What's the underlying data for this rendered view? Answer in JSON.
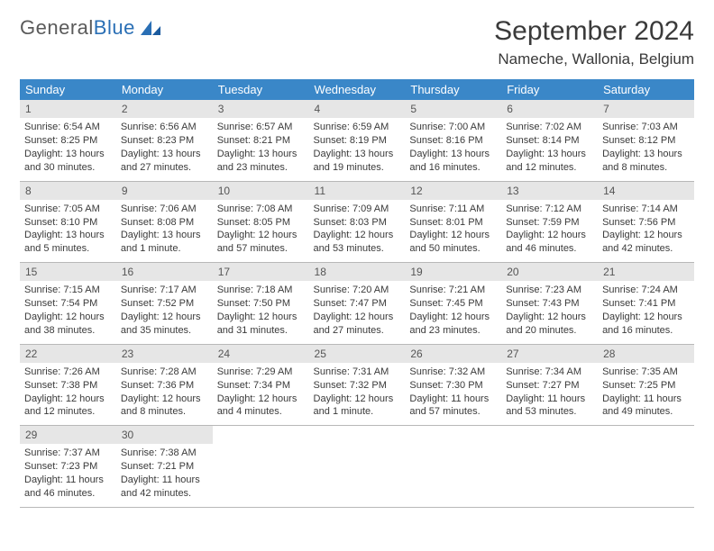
{
  "logo": {
    "text1": "General",
    "text2": "Blue"
  },
  "title": "September 2024",
  "location": "Nameche, Wallonia, Belgium",
  "colors": {
    "header_bg": "#3a87c8",
    "header_text": "#ffffff",
    "daynum_bg": "#e6e6e6",
    "border": "#b8b8b8",
    "logo_gray": "#5a5a5a",
    "logo_blue": "#2a6fb5",
    "body_text": "#3a3a3a",
    "page_bg": "#ffffff"
  },
  "weekdays": [
    "Sunday",
    "Monday",
    "Tuesday",
    "Wednesday",
    "Thursday",
    "Friday",
    "Saturday"
  ],
  "days": [
    {
      "n": "1",
      "sunrise": "Sunrise: 6:54 AM",
      "sunset": "Sunset: 8:25 PM",
      "day1": "Daylight: 13 hours",
      "day2": "and 30 minutes."
    },
    {
      "n": "2",
      "sunrise": "Sunrise: 6:56 AM",
      "sunset": "Sunset: 8:23 PM",
      "day1": "Daylight: 13 hours",
      "day2": "and 27 minutes."
    },
    {
      "n": "3",
      "sunrise": "Sunrise: 6:57 AM",
      "sunset": "Sunset: 8:21 PM",
      "day1": "Daylight: 13 hours",
      "day2": "and 23 minutes."
    },
    {
      "n": "4",
      "sunrise": "Sunrise: 6:59 AM",
      "sunset": "Sunset: 8:19 PM",
      "day1": "Daylight: 13 hours",
      "day2": "and 19 minutes."
    },
    {
      "n": "5",
      "sunrise": "Sunrise: 7:00 AM",
      "sunset": "Sunset: 8:16 PM",
      "day1": "Daylight: 13 hours",
      "day2": "and 16 minutes."
    },
    {
      "n": "6",
      "sunrise": "Sunrise: 7:02 AM",
      "sunset": "Sunset: 8:14 PM",
      "day1": "Daylight: 13 hours",
      "day2": "and 12 minutes."
    },
    {
      "n": "7",
      "sunrise": "Sunrise: 7:03 AM",
      "sunset": "Sunset: 8:12 PM",
      "day1": "Daylight: 13 hours",
      "day2": "and 8 minutes."
    },
    {
      "n": "8",
      "sunrise": "Sunrise: 7:05 AM",
      "sunset": "Sunset: 8:10 PM",
      "day1": "Daylight: 13 hours",
      "day2": "and 5 minutes."
    },
    {
      "n": "9",
      "sunrise": "Sunrise: 7:06 AM",
      "sunset": "Sunset: 8:08 PM",
      "day1": "Daylight: 13 hours",
      "day2": "and 1 minute."
    },
    {
      "n": "10",
      "sunrise": "Sunrise: 7:08 AM",
      "sunset": "Sunset: 8:05 PM",
      "day1": "Daylight: 12 hours",
      "day2": "and 57 minutes."
    },
    {
      "n": "11",
      "sunrise": "Sunrise: 7:09 AM",
      "sunset": "Sunset: 8:03 PM",
      "day1": "Daylight: 12 hours",
      "day2": "and 53 minutes."
    },
    {
      "n": "12",
      "sunrise": "Sunrise: 7:11 AM",
      "sunset": "Sunset: 8:01 PM",
      "day1": "Daylight: 12 hours",
      "day2": "and 50 minutes."
    },
    {
      "n": "13",
      "sunrise": "Sunrise: 7:12 AM",
      "sunset": "Sunset: 7:59 PM",
      "day1": "Daylight: 12 hours",
      "day2": "and 46 minutes."
    },
    {
      "n": "14",
      "sunrise": "Sunrise: 7:14 AM",
      "sunset": "Sunset: 7:56 PM",
      "day1": "Daylight: 12 hours",
      "day2": "and 42 minutes."
    },
    {
      "n": "15",
      "sunrise": "Sunrise: 7:15 AM",
      "sunset": "Sunset: 7:54 PM",
      "day1": "Daylight: 12 hours",
      "day2": "and 38 minutes."
    },
    {
      "n": "16",
      "sunrise": "Sunrise: 7:17 AM",
      "sunset": "Sunset: 7:52 PM",
      "day1": "Daylight: 12 hours",
      "day2": "and 35 minutes."
    },
    {
      "n": "17",
      "sunrise": "Sunrise: 7:18 AM",
      "sunset": "Sunset: 7:50 PM",
      "day1": "Daylight: 12 hours",
      "day2": "and 31 minutes."
    },
    {
      "n": "18",
      "sunrise": "Sunrise: 7:20 AM",
      "sunset": "Sunset: 7:47 PM",
      "day1": "Daylight: 12 hours",
      "day2": "and 27 minutes."
    },
    {
      "n": "19",
      "sunrise": "Sunrise: 7:21 AM",
      "sunset": "Sunset: 7:45 PM",
      "day1": "Daylight: 12 hours",
      "day2": "and 23 minutes."
    },
    {
      "n": "20",
      "sunrise": "Sunrise: 7:23 AM",
      "sunset": "Sunset: 7:43 PM",
      "day1": "Daylight: 12 hours",
      "day2": "and 20 minutes."
    },
    {
      "n": "21",
      "sunrise": "Sunrise: 7:24 AM",
      "sunset": "Sunset: 7:41 PM",
      "day1": "Daylight: 12 hours",
      "day2": "and 16 minutes."
    },
    {
      "n": "22",
      "sunrise": "Sunrise: 7:26 AM",
      "sunset": "Sunset: 7:38 PM",
      "day1": "Daylight: 12 hours",
      "day2": "and 12 minutes."
    },
    {
      "n": "23",
      "sunrise": "Sunrise: 7:28 AM",
      "sunset": "Sunset: 7:36 PM",
      "day1": "Daylight: 12 hours",
      "day2": "and 8 minutes."
    },
    {
      "n": "24",
      "sunrise": "Sunrise: 7:29 AM",
      "sunset": "Sunset: 7:34 PM",
      "day1": "Daylight: 12 hours",
      "day2": "and 4 minutes."
    },
    {
      "n": "25",
      "sunrise": "Sunrise: 7:31 AM",
      "sunset": "Sunset: 7:32 PM",
      "day1": "Daylight: 12 hours",
      "day2": "and 1 minute."
    },
    {
      "n": "26",
      "sunrise": "Sunrise: 7:32 AM",
      "sunset": "Sunset: 7:30 PM",
      "day1": "Daylight: 11 hours",
      "day2": "and 57 minutes."
    },
    {
      "n": "27",
      "sunrise": "Sunrise: 7:34 AM",
      "sunset": "Sunset: 7:27 PM",
      "day1": "Daylight: 11 hours",
      "day2": "and 53 minutes."
    },
    {
      "n": "28",
      "sunrise": "Sunrise: 7:35 AM",
      "sunset": "Sunset: 7:25 PM",
      "day1": "Daylight: 11 hours",
      "day2": "and 49 minutes."
    },
    {
      "n": "29",
      "sunrise": "Sunrise: 7:37 AM",
      "sunset": "Sunset: 7:23 PM",
      "day1": "Daylight: 11 hours",
      "day2": "and 46 minutes."
    },
    {
      "n": "30",
      "sunrise": "Sunrise: 7:38 AM",
      "sunset": "Sunset: 7:21 PM",
      "day1": "Daylight: 11 hours",
      "day2": "and 42 minutes."
    }
  ]
}
